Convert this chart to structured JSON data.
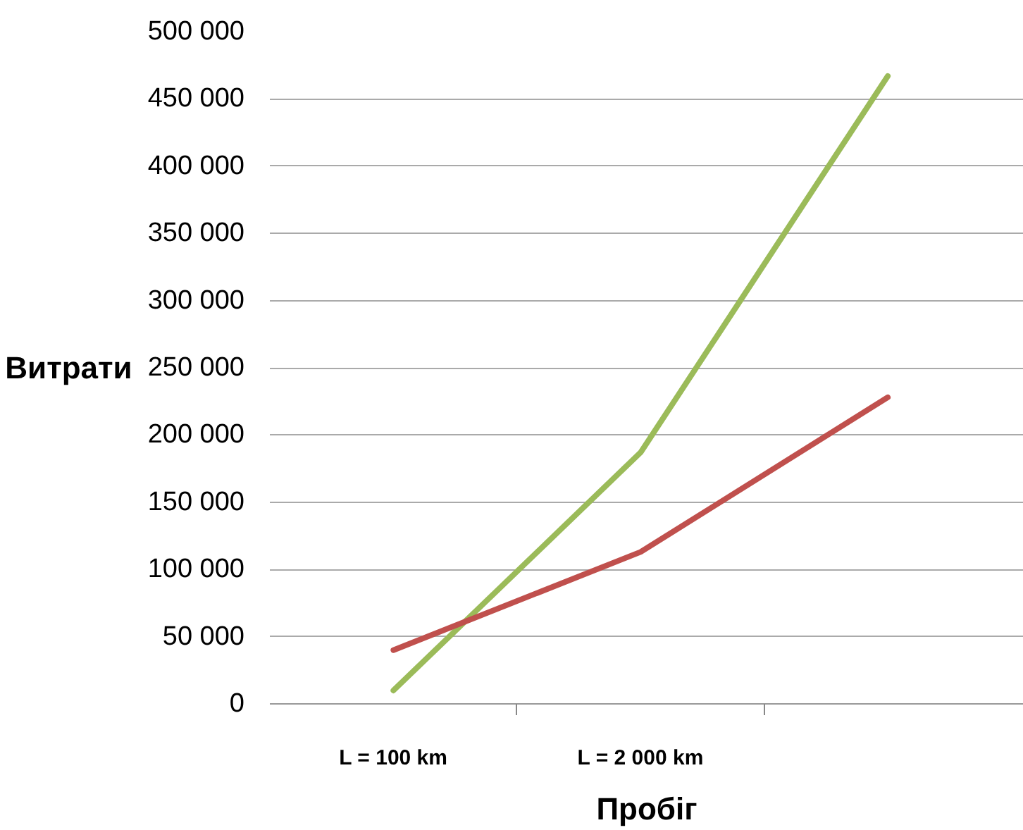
{
  "chart_data": {
    "type": "line",
    "xlabel": "Пробіг",
    "ylabel": "Витрати",
    "categories": [
      "L = 100 km",
      "L = 2 000 km",
      null
    ],
    "series": [
      {
        "color": "#9bbb59",
        "values": [
          10000,
          187000,
          467000
        ]
      },
      {
        "color": "#c0504d",
        "values": [
          40000,
          113000,
          228000
        ]
      }
    ],
    "ylim": [
      0,
      500000
    ],
    "yticks": [
      {
        "value": 0,
        "label": "0"
      },
      {
        "value": 50000,
        "label": "50 000"
      },
      {
        "value": 100000,
        "label": "100 000"
      },
      {
        "value": 150000,
        "label": "150 000"
      },
      {
        "value": 200000,
        "label": "200 000"
      },
      {
        "value": 250000,
        "label": "250 000"
      },
      {
        "value": 300000,
        "label": "300 000"
      },
      {
        "value": 350000,
        "label": "350 000"
      },
      {
        "value": 400000,
        "label": "400 000"
      },
      {
        "value": 450000,
        "label": "450 000"
      },
      {
        "value": 500000,
        "label": "500 000"
      }
    ],
    "grid": "y",
    "marker": "none",
    "line_style": "solid"
  }
}
